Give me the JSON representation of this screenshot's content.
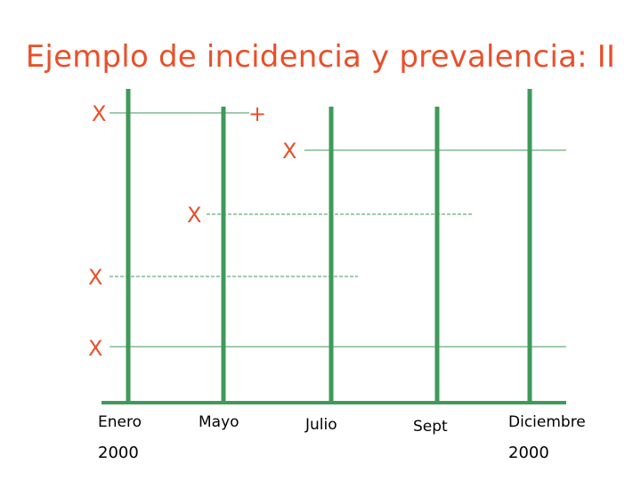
{
  "title": "Ejemplo de incidencia y prevalencia: II",
  "time_labels": {
    "enero": "Enero",
    "mayo": "Mayo",
    "julio": "Julio",
    "sept": "Sept",
    "diciembre": "Diciembre"
  },
  "year_labels": {
    "start": "2000",
    "end": "2000"
  },
  "markers": {
    "case": "X",
    "end": "+"
  },
  "colors": {
    "title": "#e8502a",
    "markers": "#e8502a",
    "time_lines": "#3f9a5a",
    "case_lines": "#3f9a5a",
    "labels": "#000000"
  }
}
